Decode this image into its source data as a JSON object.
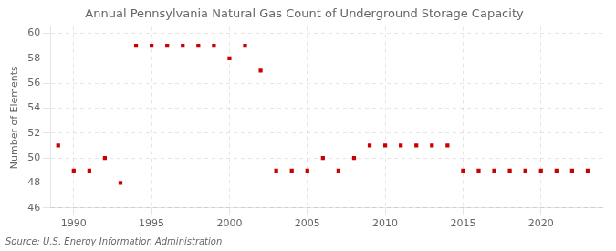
{
  "chart_data": {
    "type": "scatter",
    "title": "Annual Pennsylvania Natural Gas Count of Underground Storage Capacity",
    "ylabel": "Number of Elements",
    "annotation": "Source: U.S. Energy Information Administration",
    "x": [
      1989,
      1990,
      1991,
      1992,
      1993,
      1994,
      1995,
      1996,
      1997,
      1998,
      1999,
      2000,
      2001,
      2002,
      2003,
      2004,
      2005,
      2006,
      2007,
      2008,
      2009,
      2010,
      2011,
      2012,
      2013,
      2014,
      2015,
      2016,
      2017,
      2018,
      2019,
      2020,
      2021,
      2022,
      2023
    ],
    "values": [
      51,
      49,
      49,
      50,
      48,
      59,
      59,
      59,
      59,
      59,
      59,
      58,
      59,
      57,
      49,
      49,
      49,
      50,
      49,
      50,
      51,
      51,
      51,
      51,
      51,
      51,
      49,
      49,
      49,
      49,
      49,
      49,
      49,
      49,
      49
    ],
    "color": "#cc0000",
    "marker": "square",
    "xlim": [
      1988.5,
      2024
    ],
    "xticks": [
      1990,
      1995,
      2000,
      2005,
      2010,
      2015,
      2020
    ],
    "ylim": [
      46,
      60.5
    ],
    "yticks": [
      46,
      48,
      50,
      52,
      54,
      56,
      58,
      60
    ],
    "grid": true
  }
}
